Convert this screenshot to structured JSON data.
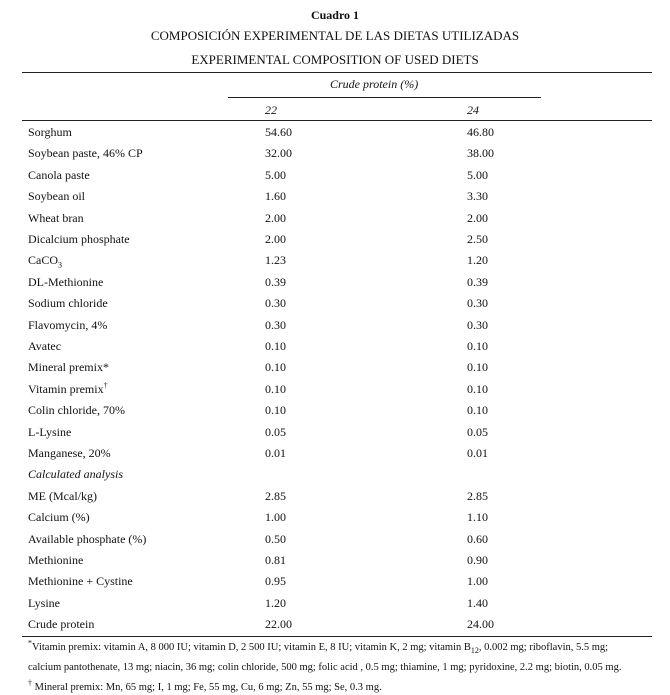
{
  "header": {
    "label": "Cuadro 1",
    "title_es": "COMPOSICIÓN EXPERIMENTAL DE LAS DIETAS UTILIZADAS",
    "title_en": "EXPERIMENTAL COMPOSITION OF USED DIETS"
  },
  "table": {
    "group_header": "Crude protein (%)",
    "columns": [
      "22",
      "24"
    ],
    "sections": [
      {
        "rows": [
          {
            "label": "Sorghum",
            "values": [
              "54.60",
              "46.80"
            ]
          },
          {
            "label": "Soybean paste, 46% CP",
            "values": [
              "32.00",
              "38.00"
            ]
          },
          {
            "label": "Canola paste",
            "values": [
              "5.00",
              "5.00"
            ]
          },
          {
            "label": "Soybean oil",
            "values": [
              "1.60",
              "3.30"
            ]
          },
          {
            "label": "Wheat bran",
            "values": [
              "2.00",
              "2.00"
            ]
          },
          {
            "label": "Dicalcium phosphate",
            "values": [
              "2.00",
              "2.50"
            ]
          },
          {
            "label": "CaCO",
            "label_sub": "3",
            "values": [
              "1.23",
              "1.20"
            ]
          },
          {
            "label": "DL-Methionine",
            "values": [
              "0.39",
              "0.39"
            ]
          },
          {
            "label": "Sodium chloride",
            "values": [
              "0.30",
              "0.30"
            ]
          },
          {
            "label": "Flavomycin, 4%",
            "values": [
              "0.30",
              "0.30"
            ]
          },
          {
            "label": "Avatec",
            "values": [
              "0.10",
              "0.10"
            ]
          },
          {
            "label": "Mineral premix*",
            "values": [
              "0.10",
              "0.10"
            ]
          },
          {
            "label": "Vitamin premix",
            "label_sup": "†",
            "values": [
              "0.10",
              "0.10"
            ]
          },
          {
            "label": "Colin chloride, 70%",
            "values": [
              "0.10",
              "0.10"
            ]
          },
          {
            "label": "L-Lysine",
            "values": [
              "0.05",
              "0.05"
            ]
          },
          {
            "label": "Manganese, 20%",
            "values": [
              "0.01",
              "0.01"
            ]
          }
        ]
      },
      {
        "heading": "Calculated analysis",
        "rows": [
          {
            "label": "ME (Mcal/kg)",
            "values": [
              "2.85",
              "2.85"
            ]
          },
          {
            "label": "Calcium (%)",
            "values": [
              "1.00",
              "1.10"
            ]
          },
          {
            "label": "Available phosphate (%)",
            "values": [
              "0.50",
              "0.60"
            ]
          },
          {
            "label": "Methionine",
            "values": [
              "0.81",
              "0.90"
            ]
          },
          {
            "label": "Methionine + Cystine",
            "values": [
              "0.95",
              "1.00"
            ]
          },
          {
            "label": "Lysine",
            "values": [
              "1.20",
              "1.40"
            ]
          },
          {
            "label": "Crude protein",
            "values": [
              "22.00",
              "24.00"
            ]
          }
        ]
      }
    ]
  },
  "footnotes": [
    [
      {
        "sup": "*"
      },
      {
        "text": "Vitamin premix: vitamin A, 8 000 IU; vitamin D, 2 500 IU; vitamin E, 8 IU; vitamin K, 2 mg; vitamin B"
      },
      {
        "sub": "12"
      },
      {
        "text": ", 0.002 mg; riboflavin, 5.5 mg;"
      }
    ],
    [
      {
        "text": "calcium pantothenate, 13 mg; niacin, 36 mg; colin chloride, 500 mg; folic acid , 0.5 mg; thiamine, 1 mg; pyridoxine, 2.2 mg; biotin, 0.05 mg."
      }
    ],
    [
      {
        "sup": "†"
      },
      {
        "text": " Mineral premix: Mn, 65 mg; I, 1 mg; Fe, 55 mg, Cu, 6 mg; Zn, 55 mg; Se, 0.3 mg."
      }
    ]
  ]
}
